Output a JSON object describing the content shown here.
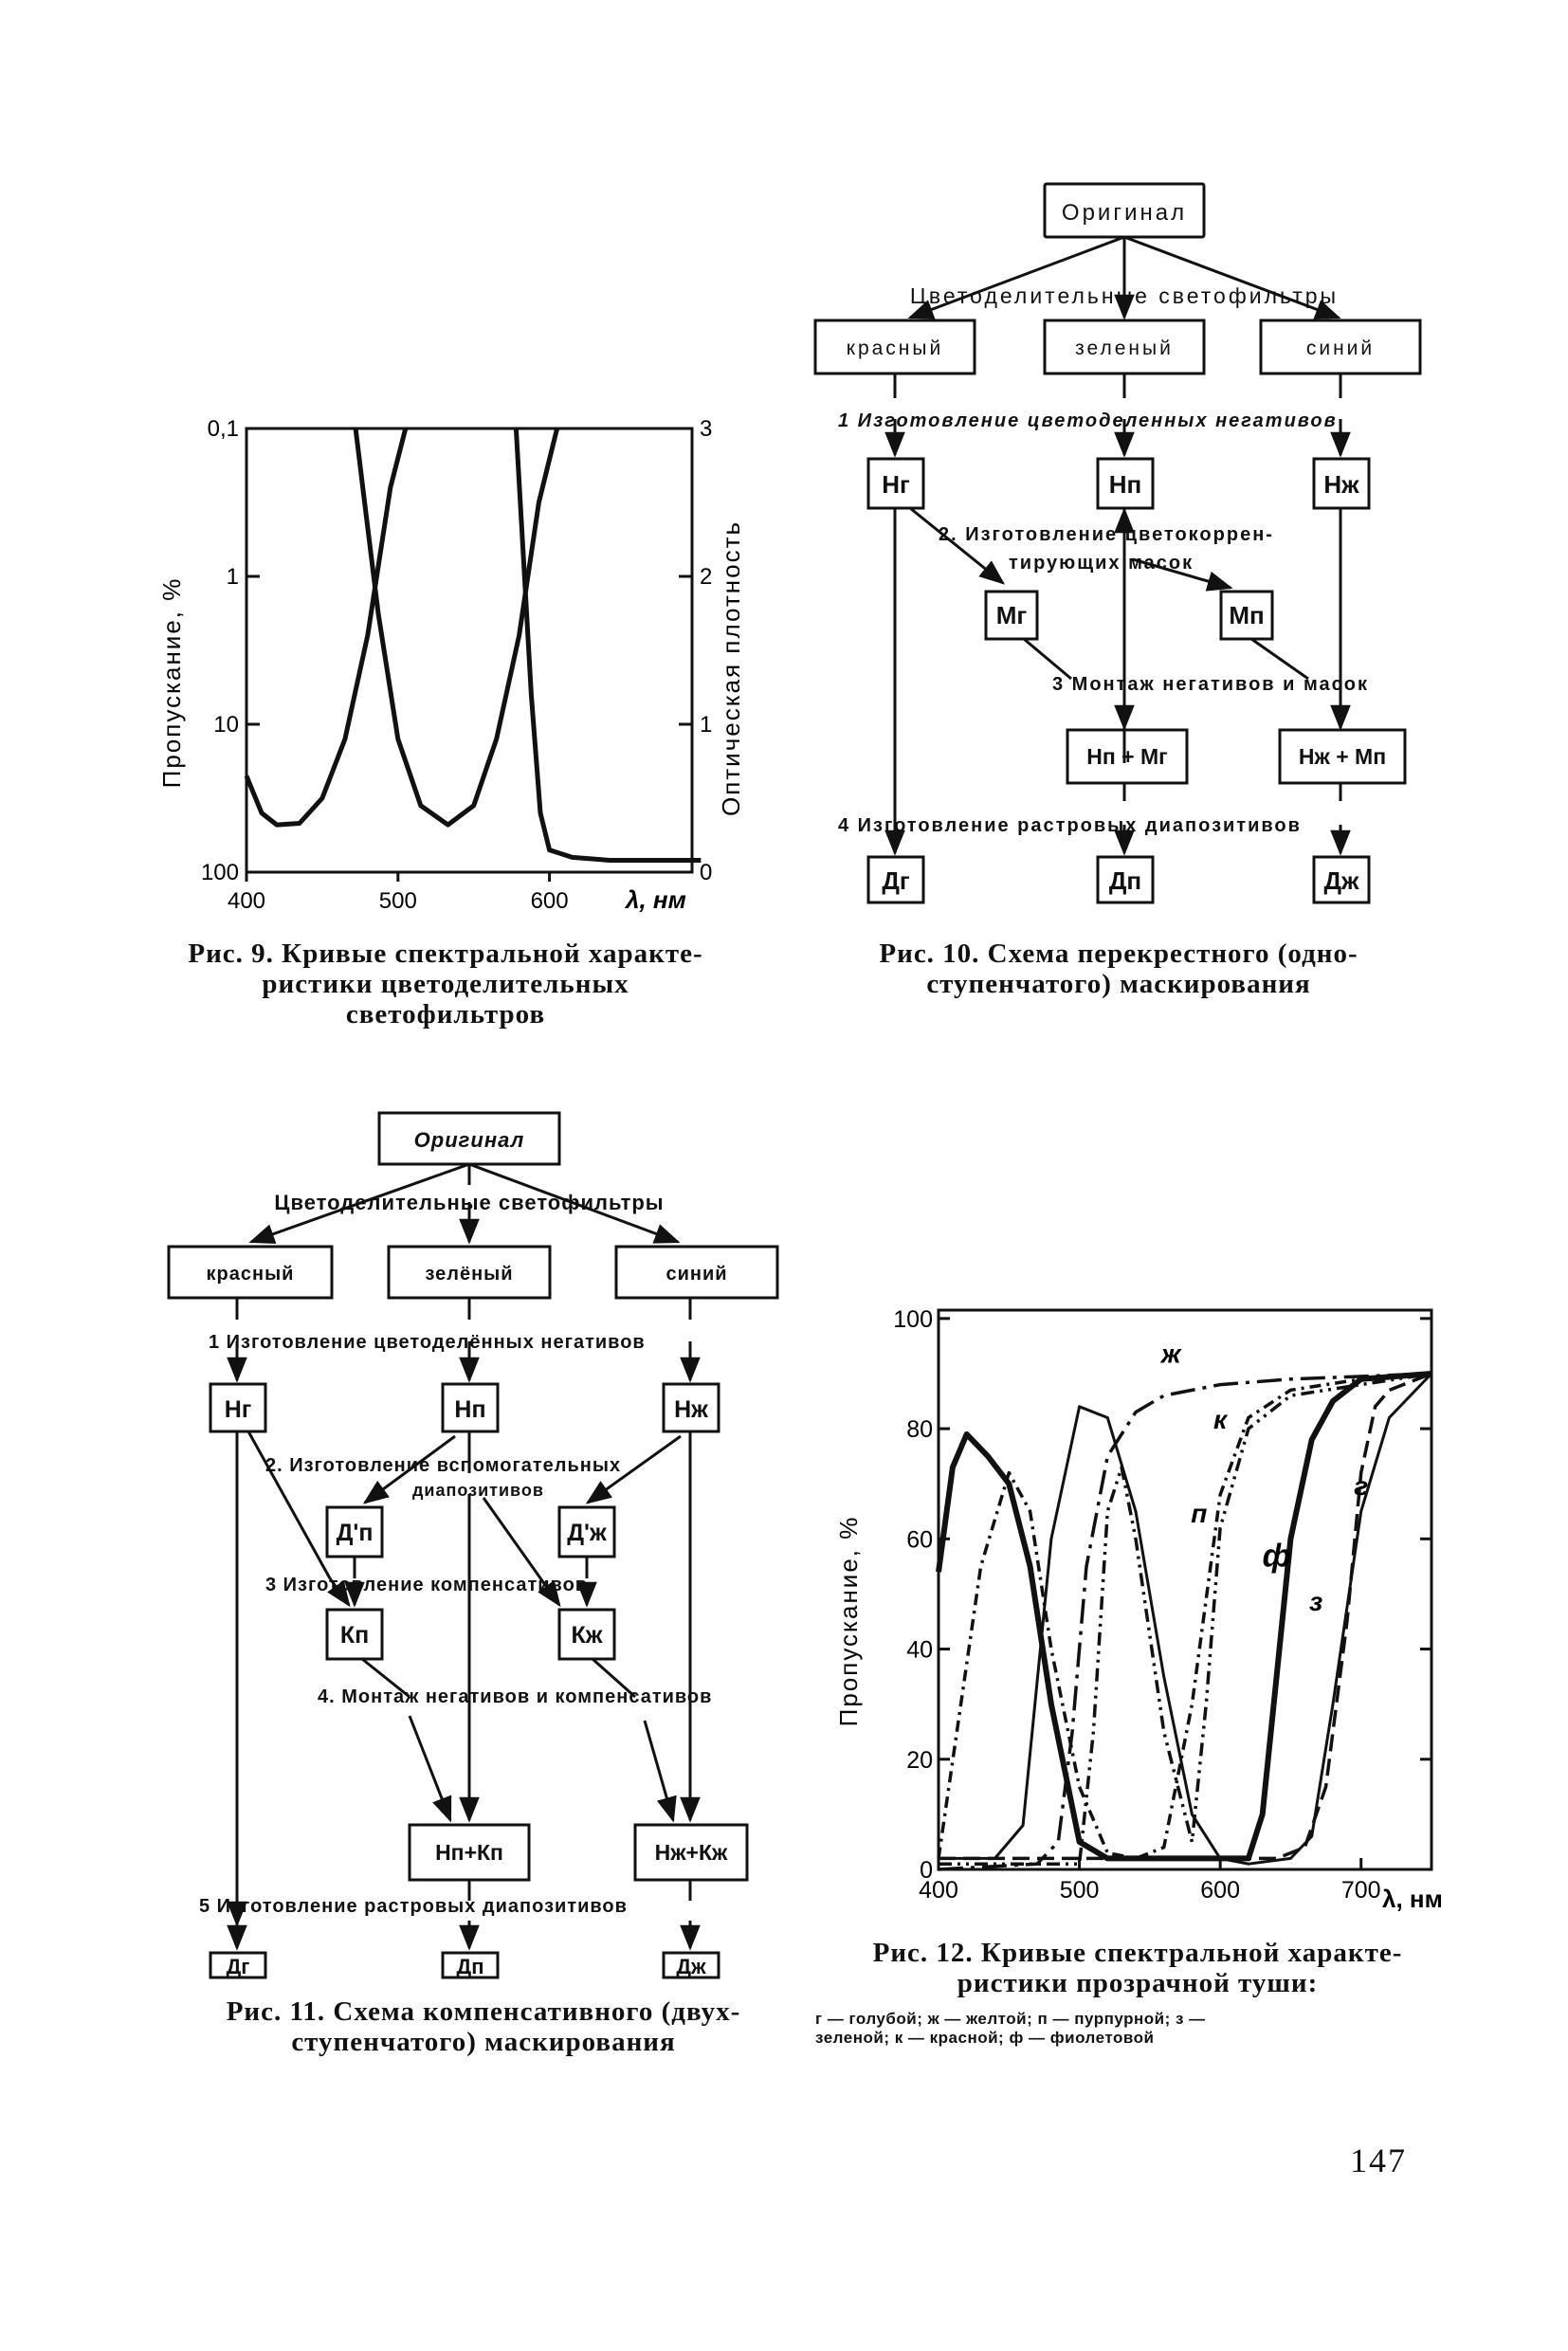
{
  "page_number": "147",
  "fig9": {
    "caption": [
      "Рис. 9. Кривые спектральной характе-",
      "ристики цветоделительных",
      "светофильтров"
    ],
    "ylabel_left": "Пропускание, %",
    "ylabel_right": "Оптическая плотность",
    "xunit": "λ, нм"
  },
  "fig10": {
    "caption": [
      "Рис. 10. Схема перекрестного (одно-",
      "ступенчатого) маскирования"
    ],
    "original": "Оригинал",
    "filters": "Цветоделительные светофильтры",
    "red": "красный",
    "green": "зеленый",
    "blue": "синий",
    "step1": "1  Изготовление цветоделенных негативов",
    "step2a": "2. Изготовление цветокоррен-",
    "step2b": "тирующих масок",
    "step3": "3  Монтаж негативов и масок",
    "step4": "4  Изготовление растровых диапозитивов",
    "Hg": "Нг",
    "Hp": "Нп",
    "Hzh": "Нж",
    "Mg": "Мг",
    "Mp": "Мп",
    "HpMg": "Нп + Мг",
    "HzhMp": "Нж + Мп",
    "Dg": "Дг",
    "Dp": "Дп",
    "Dzh": "Дж"
  },
  "fig11": {
    "caption": [
      "Рис. 11. Схема компенсативного (двух-",
      "ступенчатого) маскирования"
    ],
    "original": "Оригинал",
    "filters": "Цветоделительные светофильтры",
    "red": "красный",
    "green": "зелёный",
    "blue": "синий",
    "step1": "1 Изготовление цветоделённых негативов",
    "step2a": "2. Изготовление вспомогательных",
    "step2b": "диапозитивов",
    "step3": "3  Изготовление компенсативов",
    "step4": "4. Монтаж негативов и компенсативов",
    "step5": "5 Изготовление растровых диапозитивов",
    "Hg": "Нг",
    "Hp": "Нп",
    "Hzh": "Нж",
    "Dp1": "Д'п",
    "Dzh1": "Д'ж",
    "Kp": "Кп",
    "Kzh": "Кж",
    "HpKp": "Нп+Кп",
    "HzhKzh": "Нж+Кж",
    "Dg": "Дг",
    "Dp": "Дп",
    "Dzh": "Дж"
  },
  "fig12": {
    "caption": [
      "Рис. 12. Кривые спектральной характе-",
      "ристики прозрачной туши:"
    ],
    "legend": [
      "г — голубой;  ж — желтой;  п — пурпурной;  з —",
      "зеленой; к — красной; ф — фиолетовой"
    ],
    "ylabel": "Пропускание, %",
    "xunit": "λ, нм"
  },
  "chart_data": [
    {
      "type": "line",
      "figure": "Рис. 9",
      "xlabel": "λ, нм",
      "ylabel": "Пропускание, %",
      "y2label": "Оптическая плотность",
      "x_ticks": [
        "400",
        "500",
        "600"
      ],
      "y_ticks_left": [
        "0,1",
        "1",
        "10",
        "100"
      ],
      "y_ticks_right": [
        "3",
        "2",
        "1",
        "0"
      ],
      "xlim": [
        400,
        700
      ],
      "ylim_density": [
        0,
        3
      ],
      "series": [
        {
          "x": [
            400,
            410,
            420,
            435,
            450,
            465,
            480,
            495,
            505
          ],
          "y": [
            0.65,
            0.4,
            0.32,
            0.33,
            0.5,
            0.9,
            1.6,
            2.6,
            3.0
          ]
        },
        {
          "x": [
            472,
            478,
            487,
            500,
            515,
            533,
            550,
            565,
            580,
            593,
            605
          ],
          "y": [
            3.0,
            2.5,
            1.75,
            0.9,
            0.45,
            0.32,
            0.45,
            0.9,
            1.6,
            2.5,
            3.0
          ]
        },
        {
          "x": [
            578,
            583,
            588,
            594,
            600,
            615,
            640,
            700
          ],
          "y": [
            3.0,
            2.1,
            1.2,
            0.4,
            0.15,
            0.1,
            0.08,
            0.08
          ]
        }
      ]
    },
    {
      "type": "line",
      "figure": "Рис. 12",
      "xlabel": "λ, нм",
      "ylabel": "Пропускание, %",
      "x_ticks": [
        "400",
        "500",
        "600",
        "700"
      ],
      "y_ticks": [
        "0",
        "20",
        "40",
        "60",
        "80",
        "100"
      ],
      "xlim": [
        400,
        750
      ],
      "ylim": [
        0,
        100
      ],
      "series": [
        {
          "name": "г",
          "x": [
            400,
            600,
            640,
            660,
            675,
            690,
            700,
            710,
            720,
            750
          ],
          "y": [
            2,
            2,
            2,
            4,
            15,
            45,
            72,
            84,
            87,
            90
          ]
        },
        {
          "name": "ж",
          "x": [
            400,
            470,
            485,
            495,
            505,
            520,
            540,
            560,
            600,
            650,
            750
          ],
          "y": [
            0,
            1,
            5,
            25,
            55,
            75,
            83,
            86,
            88,
            89,
            90
          ]
        },
        {
          "name": "п",
          "x": [
            400,
            430,
            450,
            465,
            480,
            500,
            520,
            540,
            560,
            580,
            600,
            620,
            650,
            700,
            750
          ],
          "y": [
            2,
            55,
            72,
            65,
            40,
            15,
            3,
            2,
            4,
            30,
            68,
            82,
            87,
            89,
            90
          ]
        },
        {
          "name": "з",
          "x": [
            400,
            440,
            460,
            480,
            500,
            520,
            540,
            560,
            580,
            600,
            620,
            650,
            665,
            680,
            700,
            720,
            750
          ],
          "y": [
            2,
            2,
            8,
            60,
            84,
            82,
            65,
            35,
            10,
            2,
            1,
            2,
            6,
            30,
            65,
            82,
            90
          ]
        },
        {
          "name": "к",
          "x": [
            400,
            500,
            510,
            520,
            530,
            540,
            560,
            580,
            590,
            600,
            620,
            650,
            700,
            750
          ],
          "y": [
            1,
            1,
            25,
            65,
            73,
            60,
            25,
            5,
            30,
            62,
            80,
            86,
            88,
            90
          ]
        },
        {
          "name": "ф",
          "x": [
            400,
            410,
            420,
            435,
            450,
            465,
            480,
            500,
            520,
            550,
            620,
            630,
            640,
            650,
            665,
            680,
            700,
            750
          ],
          "y": [
            54,
            73,
            79,
            75,
            70,
            55,
            30,
            5,
            2,
            2,
            2,
            10,
            35,
            60,
            78,
            85,
            89,
            90
          ]
        }
      ]
    }
  ]
}
